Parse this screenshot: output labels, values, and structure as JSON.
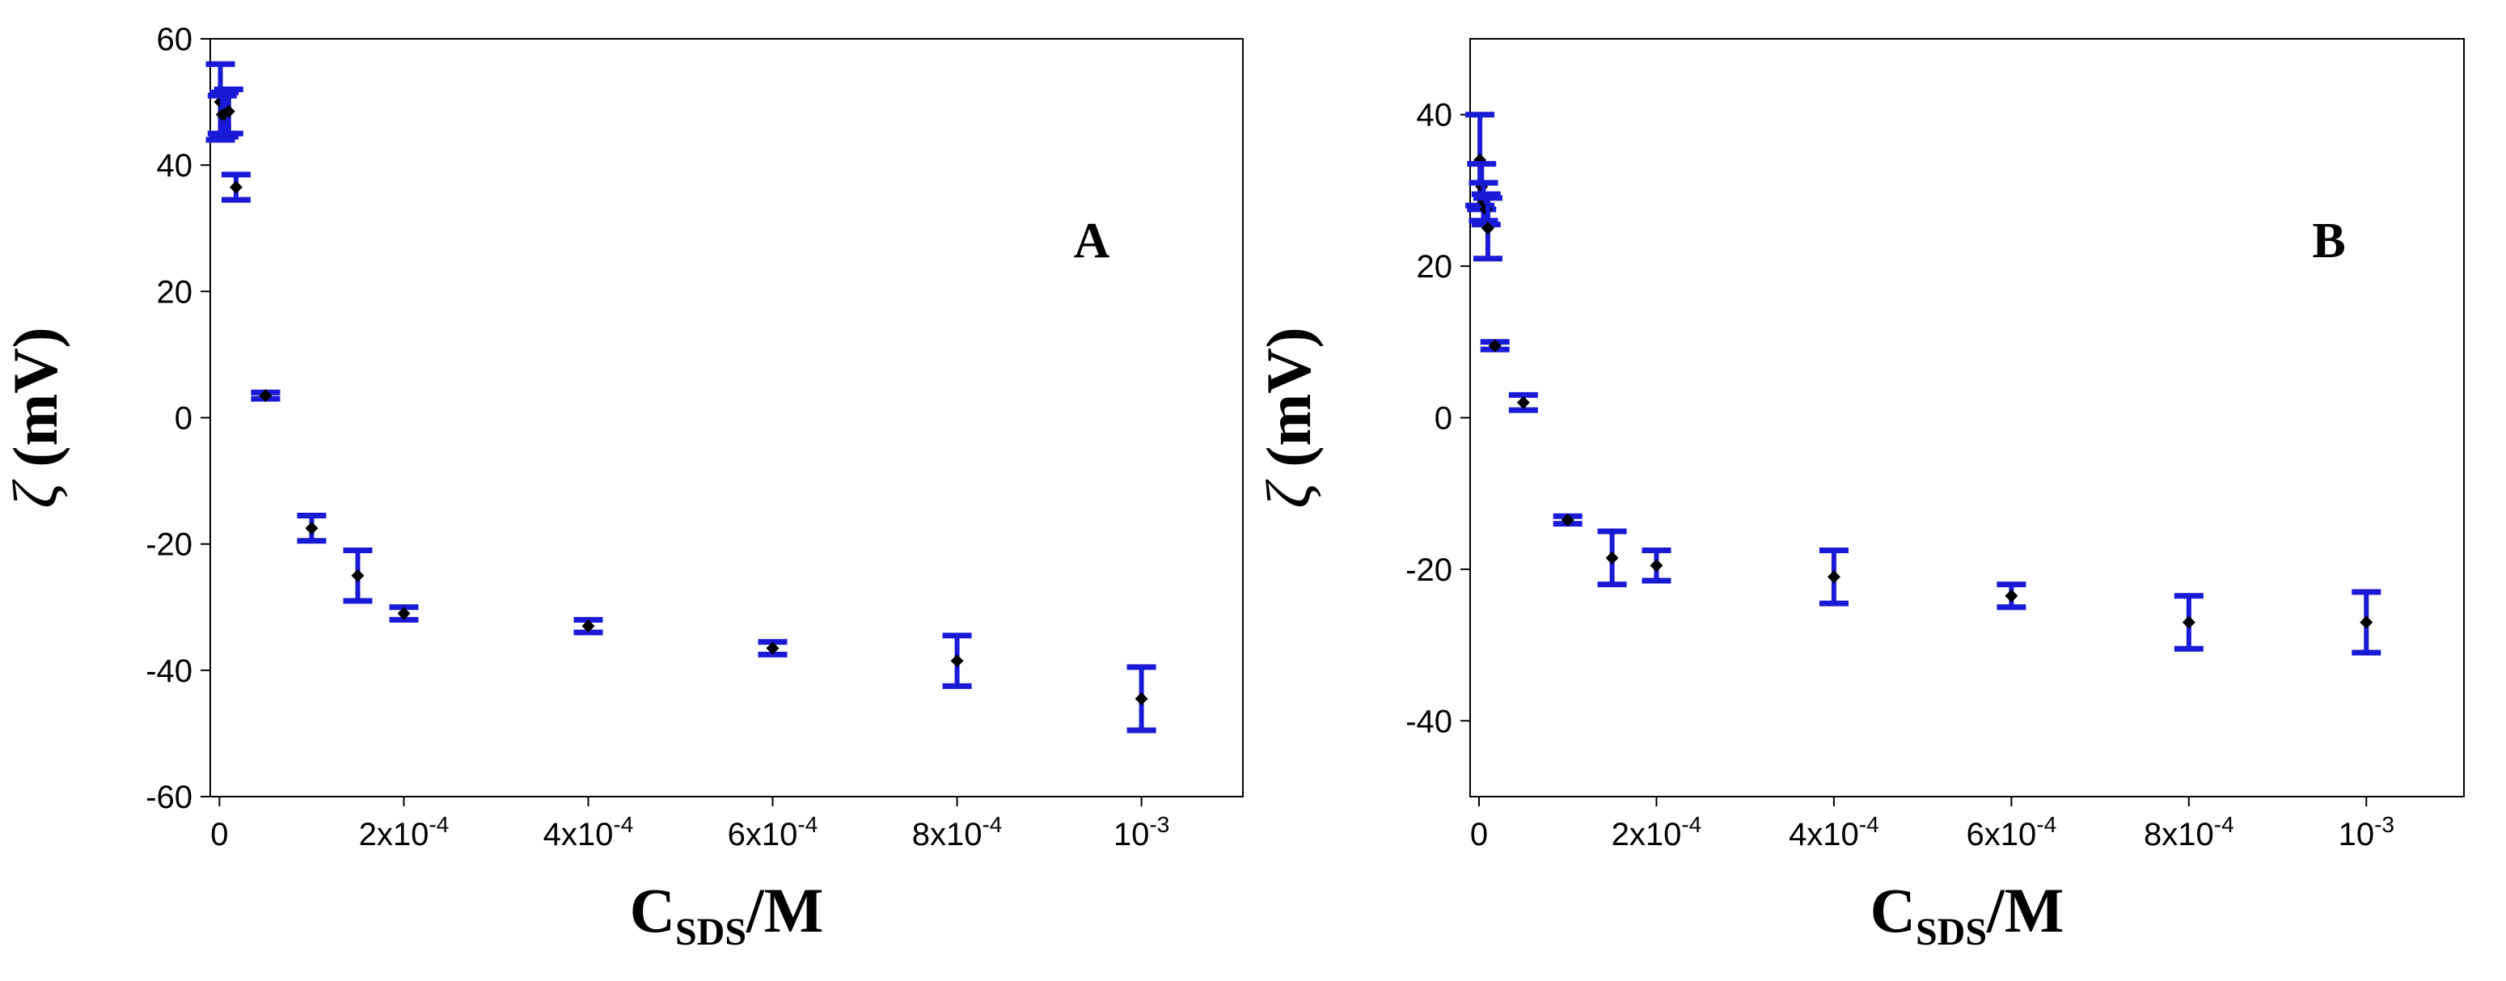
{
  "chart_data": [
    {
      "type": "scatter",
      "panel_label": "A",
      "ylabel": {
        "symbol": "ζ",
        "unit": "(mV)"
      },
      "xlabel": {
        "main": "C",
        "sub": "SDS",
        "suffix": "/M"
      },
      "xlim": [
        -1e-05,
        0.00111
      ],
      "ylim": [
        -60,
        60
      ],
      "yticks": [
        60,
        40,
        20,
        0,
        -20,
        -40,
        -60
      ],
      "xticks": [
        {
          "value": 0,
          "base": "0",
          "exp": ""
        },
        {
          "value": 0.0002,
          "base": "2x10",
          "exp": "-4"
        },
        {
          "value": 0.0004,
          "base": "4x10",
          "exp": "-4"
        },
        {
          "value": 0.0006,
          "base": "6x10",
          "exp": "-4"
        },
        {
          "value": 0.0008,
          "base": "8x10",
          "exp": "-4"
        },
        {
          "value": 0.001,
          "base": "10",
          "exp": "-3"
        }
      ],
      "series": [
        {
          "marker_color": "#000000",
          "errorbar_color": "#1a1ad6",
          "points": [
            {
              "x": 1e-06,
              "y": 50,
              "err": 6
            },
            {
              "x": 3e-06,
              "y": 48,
              "err": 3
            },
            {
              "x": 5e-06,
              "y": 48,
              "err": 3.5
            },
            {
              "x": 1e-05,
              "y": 48.5,
              "err": 3.5
            },
            {
              "x": 1.8e-05,
              "y": 36.5,
              "err": 2
            },
            {
              "x": 5e-05,
              "y": 3.5,
              "err": 0.5
            },
            {
              "x": 0.0001,
              "y": -17.5,
              "err": 2
            },
            {
              "x": 0.00015,
              "y": -25,
              "err": 4
            },
            {
              "x": 0.0002,
              "y": -31,
              "err": 1
            },
            {
              "x": 0.0004,
              "y": -33,
              "err": 1
            },
            {
              "x": 0.0006,
              "y": -36.5,
              "err": 1
            },
            {
              "x": 0.0008,
              "y": -38.5,
              "err": 4
            },
            {
              "x": 0.001,
              "y": -44.5,
              "err": 5
            }
          ]
        }
      ]
    },
    {
      "type": "scatter",
      "panel_label": "B",
      "ylabel": {
        "symbol": "ζ",
        "unit": "(mV)"
      },
      "xlabel": {
        "main": "C",
        "sub": "SDS",
        "suffix": "/M"
      },
      "xlim": [
        -1e-05,
        0.00111
      ],
      "ylim": [
        -50,
        50
      ],
      "yticks": [
        40,
        20,
        0,
        -20,
        -40
      ],
      "xticks": [
        {
          "value": 0,
          "base": "0",
          "exp": ""
        },
        {
          "value": 0.0002,
          "base": "2x10",
          "exp": "-4"
        },
        {
          "value": 0.0004,
          "base": "4x10",
          "exp": "-4"
        },
        {
          "value": 0.0006,
          "base": "6x10",
          "exp": "-4"
        },
        {
          "value": 0.0008,
          "base": "8x10",
          "exp": "-4"
        },
        {
          "value": 0.001,
          "base": "10",
          "exp": "-3"
        }
      ],
      "series": [
        {
          "marker_color": "#000000",
          "errorbar_color": "#1a1ad6",
          "points": [
            {
              "x": 1e-06,
              "y": 34,
              "err": 6
            },
            {
              "x": 3e-06,
              "y": 30.5,
              "err": 3
            },
            {
              "x": 5e-06,
              "y": 28.5,
              "err": 2.5
            },
            {
              "x": 8e-06,
              "y": 27.5,
              "err": 2
            },
            {
              "x": 1e-05,
              "y": 25,
              "err": 4
            },
            {
              "x": 1.8e-05,
              "y": 9.5,
              "err": 0.5
            },
            {
              "x": 5e-05,
              "y": 2,
              "err": 1
            },
            {
              "x": 0.0001,
              "y": -13.5,
              "err": 0.5
            },
            {
              "x": 0.00015,
              "y": -18.5,
              "err": 3.5
            },
            {
              "x": 0.0002,
              "y": -19.5,
              "err": 2
            },
            {
              "x": 0.0004,
              "y": -21,
              "err": 3.5
            },
            {
              "x": 0.0006,
              "y": -23.5,
              "err": 1.5
            },
            {
              "x": 0.0008,
              "y": -27,
              "err": 3.5
            },
            {
              "x": 0.001,
              "y": -27,
              "err": 4
            }
          ]
        }
      ]
    }
  ]
}
